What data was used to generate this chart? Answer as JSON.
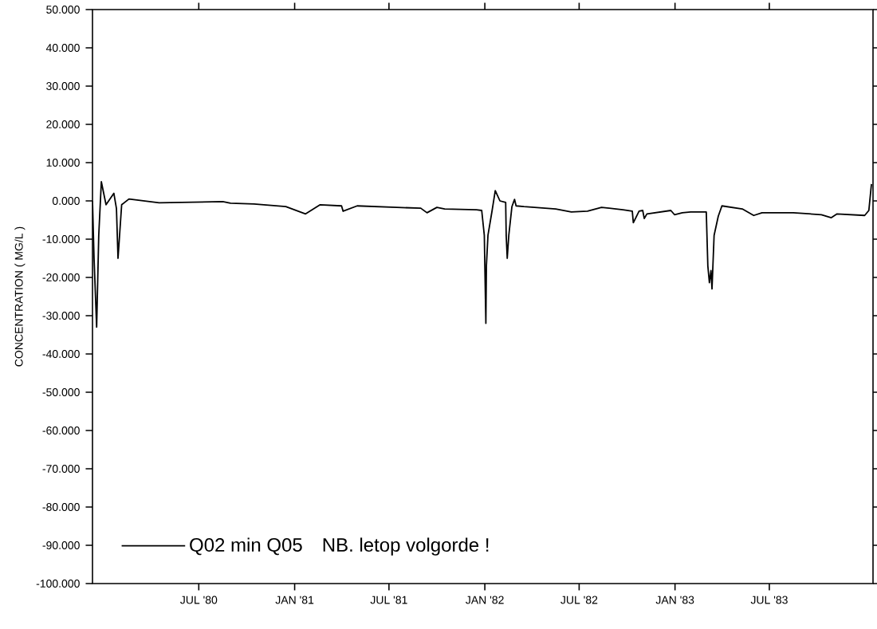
{
  "chart_data": {
    "type": "line",
    "ylabel": "CONCENTRATION ( MG/L )",
    "x": [
      "1979-12-10",
      "1979-12-13",
      "1979-12-18",
      "1979-12-22",
      "1979-12-27",
      "1980-01-05",
      "1980-01-20",
      "1980-01-25",
      "1980-01-28",
      "1980-02-04",
      "1980-02-18",
      "1980-04-16",
      "1980-08-16",
      "1980-08-31",
      "1980-10-15",
      "1980-12-15",
      "1981-01-22",
      "1981-02-19",
      "1981-04-01",
      "1981-04-04",
      "1981-05-01",
      "1981-07-16",
      "1981-08-31",
      "1981-09-12",
      "1981-10-01",
      "1981-10-16",
      "1981-12-16",
      "1981-12-26",
      "1981-12-31",
      "1982-01-01",
      "1982-01-03",
      "1982-01-04",
      "1982-01-07",
      "1982-01-15",
      "1982-01-21",
      "1982-01-30",
      "1982-02-10",
      "1982-02-11",
      "1982-02-13",
      "1982-02-16",
      "1982-02-22",
      "1982-02-27",
      "1982-03-02",
      "1982-03-17",
      "1982-05-17",
      "1982-06-16",
      "1982-07-17",
      "1982-08-13",
      "1982-09-23",
      "1982-10-11",
      "1982-10-13",
      "1982-10-24",
      "1982-10-31",
      "1982-11-03",
      "1982-11-08",
      "1982-12-24",
      "1982-12-31",
      "1983-01-15",
      "1983-01-31",
      "1983-03-02",
      "1983-03-05",
      "1983-03-08",
      "1983-03-11",
      "1983-03-13",
      "1983-03-17",
      "1983-03-25",
      "1983-04-01",
      "1983-05-10",
      "1983-06-01",
      "1983-06-17",
      "1983-08-16",
      "1983-10-09",
      "1983-10-28",
      "1983-11-08",
      "1983-12-31",
      "1984-01-08",
      "1984-01-13"
    ],
    "series": [
      {
        "name": "Q02 min Q05",
        "color": "#000000",
        "values": [
          0,
          -15,
          -33,
          -9,
          5,
          -1,
          2,
          -2,
          -15,
          -1,
          0.5,
          -0.5,
          -0.2,
          -0.6,
          -0.8,
          -1.5,
          -3.4,
          -1,
          -1.3,
          -2.7,
          -1.3,
          -1.7,
          -1.9,
          -3.1,
          -1.7,
          -2.1,
          -2.3,
          -2.5,
          -9,
          -17,
          -32,
          -17,
          -9,
          -2.5,
          2.7,
          0,
          -0.4,
          -9,
          -15,
          -9,
          -1.5,
          0.4,
          -1.3,
          -1.5,
          -2.1,
          -2.9,
          -2.7,
          -1.7,
          -2.3,
          -2.7,
          -5.7,
          -2.7,
          -2.5,
          -4.6,
          -3.4,
          -2.5,
          -3.6,
          -3.1,
          -2.9,
          -2.9,
          -17,
          -21.4,
          -18.2,
          -23,
          -9,
          -4,
          -1.3,
          -2.1,
          -3.8,
          -3.1,
          -3.1,
          -3.6,
          -4.4,
          -3.4,
          -3.8,
          -2.5,
          4.4
        ]
      }
    ],
    "xlim": [
      "1979-12-10",
      "1984-01-16"
    ],
    "xticks": [
      {
        "value": "1980-07-01",
        "label": "JUL '80"
      },
      {
        "value": "1981-01-01",
        "label": "JAN '81"
      },
      {
        "value": "1981-07-01",
        "label": "JUL '81"
      },
      {
        "value": "1982-01-01",
        "label": "JAN '82"
      },
      {
        "value": "1982-07-01",
        "label": "JUL '82"
      },
      {
        "value": "1983-01-01",
        "label": "JAN '83"
      },
      {
        "value": "1983-07-01",
        "label": "JUL '83"
      }
    ],
    "ylim": [
      -100,
      50
    ],
    "yticks": [
      {
        "value": 50,
        "label": "50.000"
      },
      {
        "value": 40,
        "label": "40.000"
      },
      {
        "value": 30,
        "label": "30.000"
      },
      {
        "value": 20,
        "label": "20.000"
      },
      {
        "value": 10,
        "label": "10.000"
      },
      {
        "value": 0,
        "label": "0.000"
      },
      {
        "value": -10,
        "label": "-10.000"
      },
      {
        "value": -20,
        "label": "-20.000"
      },
      {
        "value": -30,
        "label": "-30.000"
      },
      {
        "value": -40,
        "label": "-40.000"
      },
      {
        "value": -50,
        "label": "-50.000"
      },
      {
        "value": -60,
        "label": "-60.000"
      },
      {
        "value": -70,
        "label": "-70.000"
      },
      {
        "value": -80,
        "label": "-80.000"
      },
      {
        "value": -90,
        "label": "-90.000"
      },
      {
        "value": -100,
        "label": "-100.000"
      }
    ],
    "legend": "bottom left",
    "annotations": [
      "NB. letop volgorde !"
    ]
  }
}
